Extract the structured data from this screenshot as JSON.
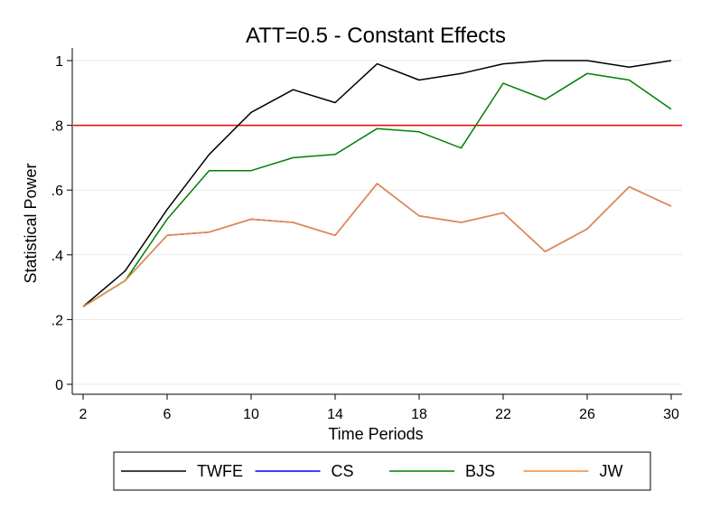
{
  "chart_data": {
    "type": "line",
    "title": "ATT=0.5 - Constant Effects",
    "xlabel": "Time Periods",
    "ylabel": "Statistical Power",
    "x": [
      2,
      4,
      6,
      8,
      10,
      12,
      14,
      16,
      18,
      20,
      22,
      24,
      26,
      28,
      30
    ],
    "xticks": [
      2,
      6,
      10,
      14,
      18,
      22,
      26,
      30
    ],
    "xtick_labels": [
      "2",
      "6",
      "10",
      "14",
      "18",
      "22",
      "26",
      "30"
    ],
    "yticks": [
      0,
      0.2,
      0.4,
      0.6,
      0.8,
      1
    ],
    "ytick_labels": [
      "0",
      ".2",
      ".4",
      ".6",
      ".8",
      "1"
    ],
    "xlim": [
      2,
      30
    ],
    "ylim": [
      0,
      1
    ],
    "grid": "horizontal",
    "reference_line": {
      "y": 0.8,
      "color": "#e8000b"
    },
    "legend_position": "bottom",
    "series": [
      {
        "name": "TWFE",
        "color": "#000000",
        "values": [
          0.24,
          0.35,
          0.54,
          0.71,
          0.84,
          0.91,
          0.87,
          0.99,
          0.94,
          0.96,
          0.99,
          1.0,
          1.0,
          0.98,
          1.0
        ]
      },
      {
        "name": "CS",
        "color": "#0000ff",
        "values": [
          0.24,
          0.32,
          0.46,
          0.47,
          0.51,
          0.5,
          0.46,
          0.62,
          0.52,
          0.5,
          0.53,
          0.41,
          0.48,
          0.61,
          0.55
        ]
      },
      {
        "name": "BJS",
        "color": "#008000",
        "values": [
          0.24,
          0.32,
          0.51,
          0.66,
          0.66,
          0.7,
          0.71,
          0.79,
          0.78,
          0.73,
          0.93,
          0.88,
          0.96,
          0.94,
          0.85
        ]
      },
      {
        "name": "JW",
        "color": "#f08c3c",
        "values": [
          0.24,
          0.32,
          0.46,
          0.47,
          0.51,
          0.5,
          0.46,
          0.62,
          0.52,
          0.5,
          0.53,
          0.41,
          0.48,
          0.61,
          0.55
        ]
      }
    ]
  }
}
